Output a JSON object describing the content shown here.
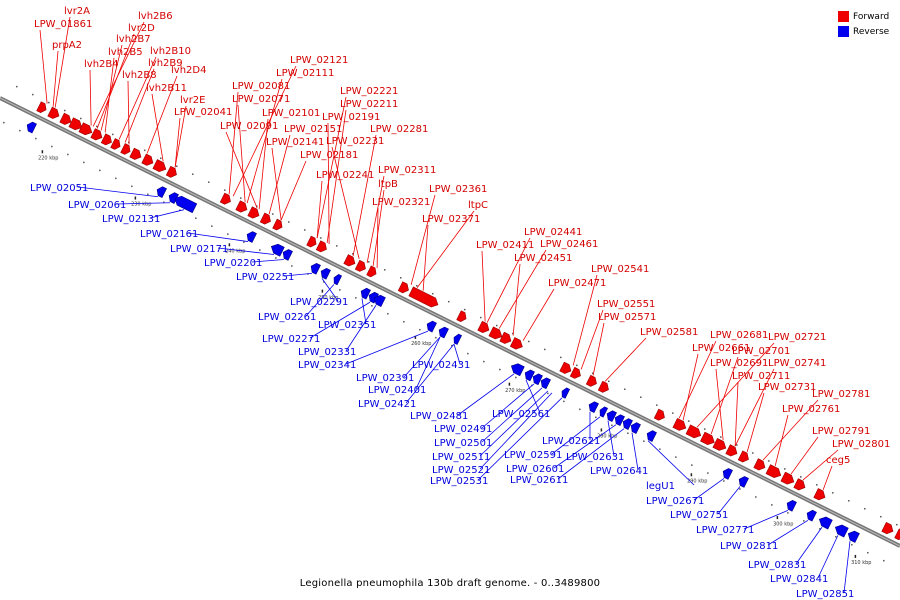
{
  "title": "Legionella pneumophila 130b draft genome. - 0..3489800",
  "legend": {
    "forward": {
      "label": "Forward",
      "color": "#ee0000"
    },
    "reverse": {
      "label": "Reverse",
      "color": "#0000ee"
    }
  },
  "ticks": [
    "220 kbp",
    "230 kbp",
    "240 kbp",
    "250 kbp",
    "260 kbp",
    "270 kbp",
    "280 kbp",
    "290 kbp",
    "300 kbp",
    "310 kbp"
  ],
  "forward_genes": [
    "LPW_01861",
    "lvr2A",
    "prpA2",
    "lvh2B6",
    "lvr2D",
    "lvh2B7",
    "lvh2B5",
    "lvh2B4",
    "lvh2B10",
    "lvh2B9",
    "lvh2B8",
    "lvh2D4",
    "lvh2B11",
    "lvr2E",
    "LPW_02041",
    "LPW_02121",
    "LPW_02111",
    "LPW_02081",
    "LPW_02071",
    "LPW_02101",
    "LPW_02091",
    "LPW_02151",
    "LPW_02141",
    "LPW_02181",
    "LPW_02221",
    "LPW_02211",
    "LPW_02191",
    "LPW_02281",
    "LPW_02231",
    "LPW_02241",
    "LPW_02311",
    "ltpB",
    "LPW_02321",
    "LPW_02361",
    "ltpC",
    "LPW_02371",
    "LPW_02441",
    "LPW_02411",
    "LPW_02461",
    "LPW_02451",
    "LPW_02471",
    "LPW_02541",
    "LPW_02551",
    "LPW_02571",
    "LPW_02581",
    "LPW_02681",
    "LPW_02721",
    "LPW_02661",
    "LPW_02701",
    "LPW_02691",
    "LPW_02741",
    "LPW_02711",
    "LPW_02731",
    "LPW_02781",
    "LPW_02761",
    "LPW_02791",
    "LPW_02801",
    "ceg5"
  ],
  "reverse_genes": [
    "LPW_02051",
    "LPW_02061",
    "LPW_02131",
    "LPW_02161",
    "LPW_02171",
    "LPW_02201",
    "LPW_02251",
    "LPW_02291",
    "LPW_02261",
    "LPW_02351",
    "LPW_02271",
    "LPW_02331",
    "LPW_02341",
    "LPW_02391",
    "LPW_02431",
    "LPW_02401",
    "LPW_02421",
    "LPW_02481",
    "LPW_02561",
    "LPW_02491",
    "LPW_02501",
    "LPW_02511",
    "LPW_02521",
    "LPW_02531",
    "LPW_02621",
    "LPW_02591",
    "LPW_02631",
    "LPW_02601",
    "LPW_02611",
    "LPW_02641",
    "legU1",
    "LPW_02671",
    "LPW_02751",
    "LPW_02771",
    "LPW_02811",
    "LPW_02831",
    "LPW_02841",
    "LPW_02851"
  ]
}
